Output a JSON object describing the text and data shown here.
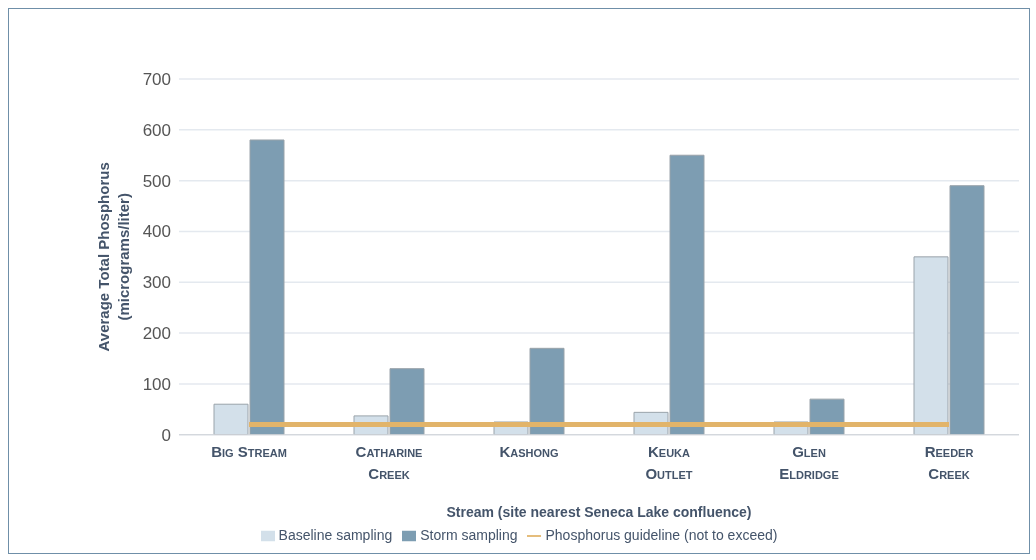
{
  "chart_data": {
    "type": "bar",
    "xlabel": "Stream (site nearest Seneca Lake confluence)",
    "ylabel": "Average Total Phosphorus (micrograms/liter)",
    "categories": [
      "Big Stream",
      "Catharine Creek",
      "Kashong",
      "Keuka Outlet",
      "Glen Eldridge",
      "Reeder Creek"
    ],
    "series": [
      {
        "name": "Baseline sampling",
        "color": "#d3e0ea",
        "values": [
          60,
          37,
          25,
          44,
          25,
          350
        ]
      },
      {
        "name": "Storm sampling",
        "color": "#7d9db2",
        "values": [
          580,
          130,
          170,
          550,
          70,
          490
        ]
      },
      {
        "name": "Phosphorus guideline (not to exceed)",
        "type": "line",
        "color": "#e2b46a",
        "values": [
          20,
          20,
          20,
          20,
          20,
          20
        ]
      }
    ],
    "ylim": [
      0,
      700
    ],
    "yticks": [
      0,
      100,
      200,
      300,
      400,
      500,
      600,
      700
    ],
    "grid": "y",
    "legend": "bottom",
    "marker": "none"
  }
}
